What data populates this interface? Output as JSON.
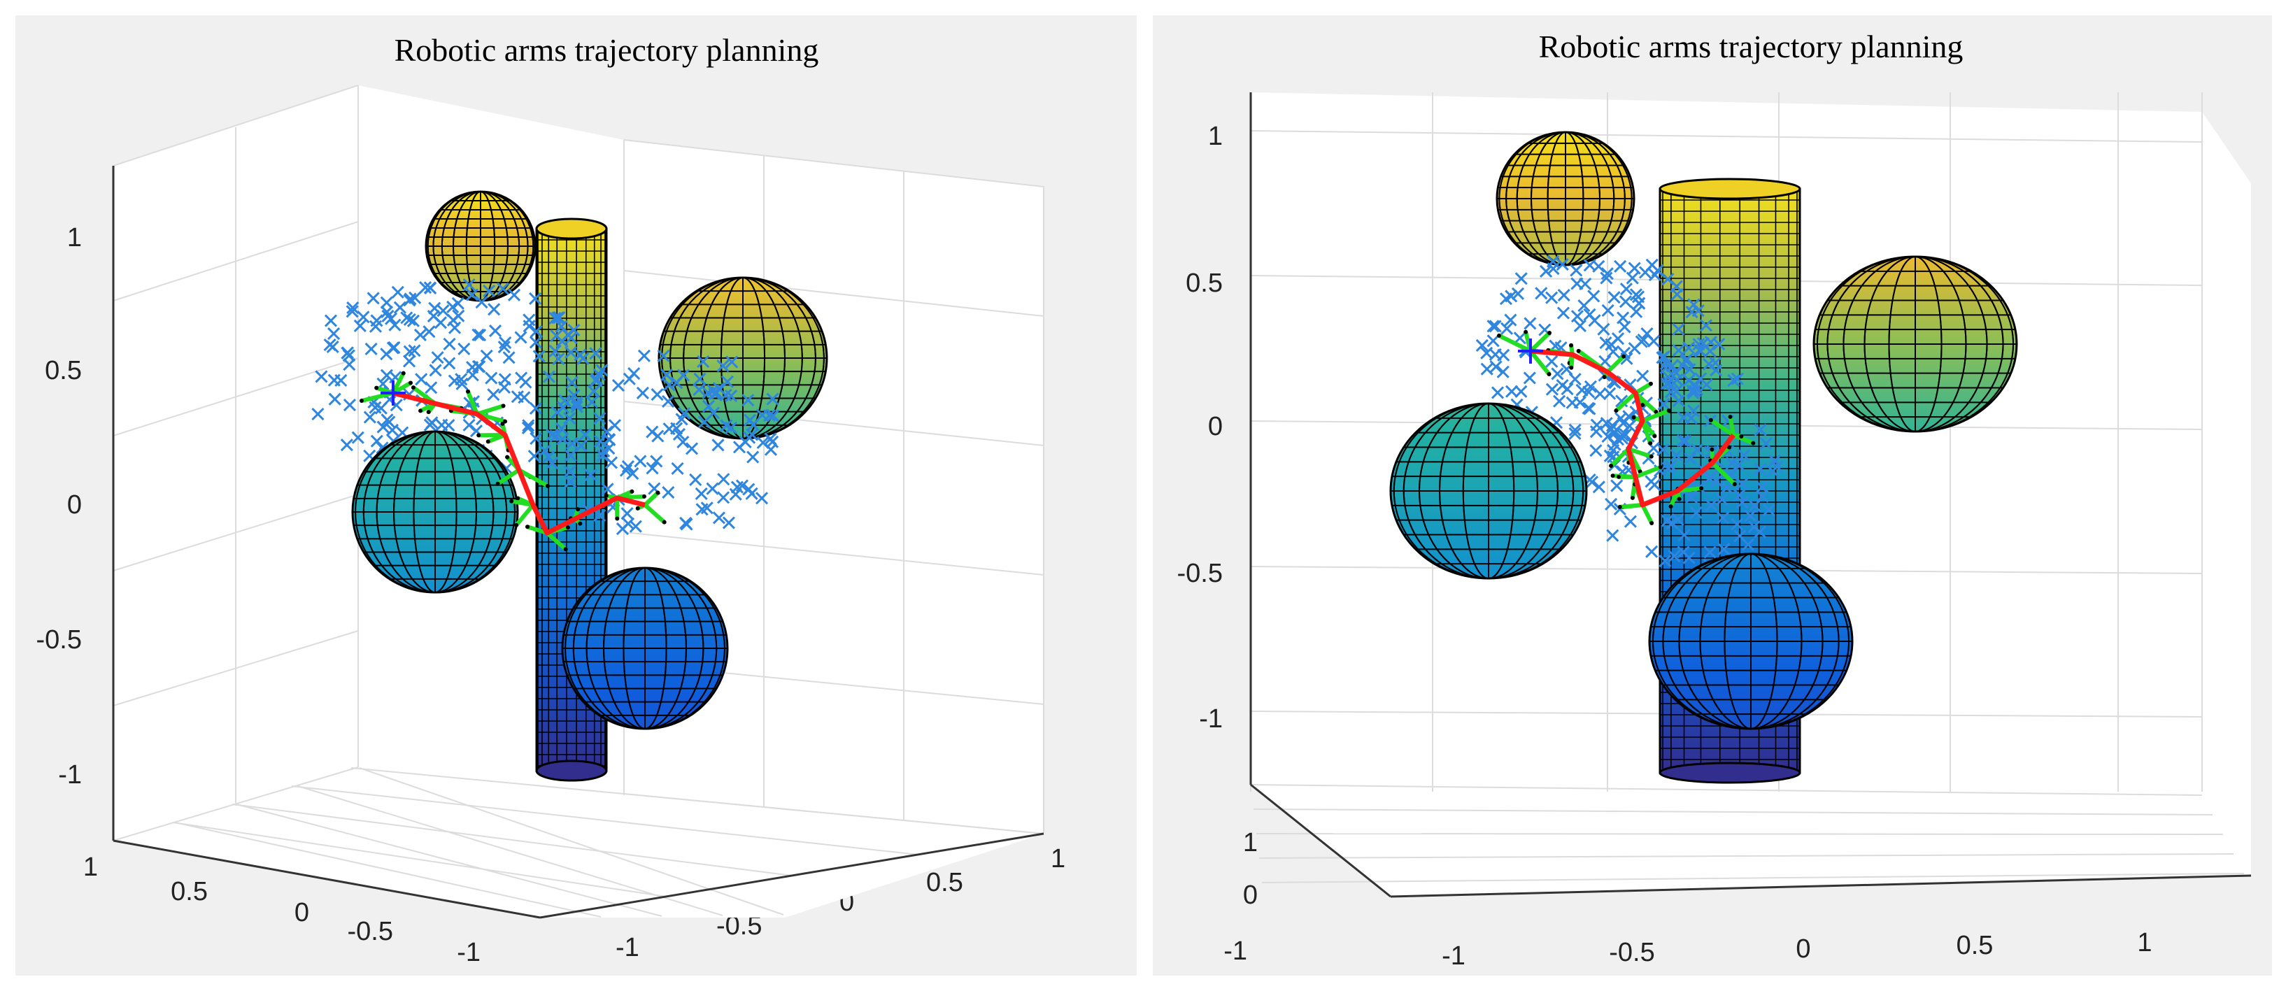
{
  "chart_data": [
    {
      "type": "scatter3d",
      "title": "Robotic arms trajectory planning",
      "view": "oblique, looking from the front-left",
      "grid": true,
      "axes": {
        "x": {
          "range": [
            -1,
            1
          ],
          "ticks": [
            "-1",
            "-0.5",
            "0",
            "0.5",
            "1"
          ]
        },
        "y": {
          "range": [
            -1,
            1
          ],
          "ticks": [
            "1",
            "0.5",
            "0",
            "-0.5",
            "-1"
          ]
        },
        "z": {
          "range": [
            -1.2,
            1.2
          ],
          "ticks": [
            "1",
            "0.5",
            "0",
            "-0.5",
            "-1"
          ]
        }
      },
      "series": [
        {
          "name": "obstacles",
          "kind": "spheres and cylinder",
          "colormap": "parula"
        },
        {
          "name": "sampled nodes",
          "marker": "x",
          "color": "#2e86de"
        },
        {
          "name": "tree edges",
          "color": "#22dd22"
        },
        {
          "name": "planned path",
          "color": "#ff1a1a"
        },
        {
          "name": "start",
          "marker": "+",
          "color": "#2020ff"
        }
      ]
    },
    {
      "type": "scatter3d",
      "title": "Robotic arms trajectory planning",
      "view": "nearly frontal",
      "grid": true,
      "axes": {
        "x": {
          "range": [
            -1,
            1
          ],
          "ticks": [
            "-1",
            "-0.5",
            "0",
            "0.5",
            "1"
          ]
        },
        "y": {
          "range": [
            -1,
            1
          ],
          "ticks": [
            "1",
            "0",
            "-1"
          ]
        },
        "z": {
          "range": [
            -1.2,
            1.2
          ],
          "ticks": [
            "1",
            "0.5",
            "0",
            "-0.5",
            "-1"
          ]
        }
      },
      "series": [
        {
          "name": "obstacles",
          "kind": "spheres and cylinder",
          "colormap": "parula"
        },
        {
          "name": "sampled nodes",
          "marker": "x",
          "color": "#2e86de"
        },
        {
          "name": "tree edges",
          "color": "#22dd22"
        },
        {
          "name": "planned path",
          "color": "#ff1a1a"
        },
        {
          "name": "start",
          "marker": "+",
          "color": "#2020ff"
        }
      ]
    }
  ]
}
